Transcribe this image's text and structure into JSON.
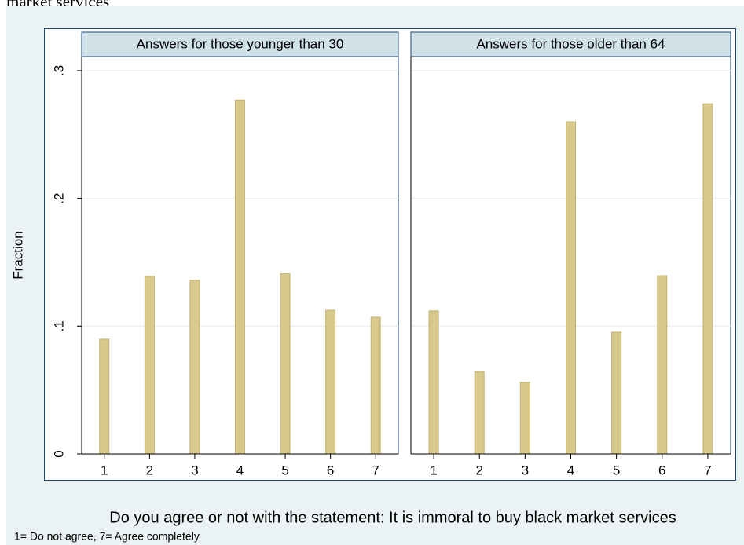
{
  "caption_fragment": "market services",
  "chart_data": {
    "type": "bar",
    "panels": [
      {
        "title": "Answers for those younger than 30",
        "values": [
          0.0898,
          0.139,
          0.136,
          0.277,
          0.141,
          0.1125,
          0.107
        ]
      },
      {
        "title": "Answers for those older than 64",
        "values": [
          0.112,
          0.0645,
          0.056,
          0.26,
          0.0953,
          0.1395,
          0.274
        ]
      }
    ],
    "x": [
      1,
      2,
      3,
      4,
      5,
      6,
      7
    ],
    "xlim": [
      0.5,
      7.5
    ],
    "xticks": [
      1,
      2,
      3,
      4,
      5,
      6,
      7
    ],
    "ylim": [
      0,
      0.311
    ],
    "yticks": [
      0,
      {
        "value": 0.1,
        "label": ".1"
      },
      {
        "value": 0.2,
        "label": ".2"
      },
      {
        "value": 0.3,
        "label": ".3"
      }
    ],
    "ylabel": "Fraction",
    "xlabel": "Do you agree or not with the statement: It is immoral to buy black market services",
    "note": "1= Do not agree, 7= Agree completely",
    "color": "#d8c98c",
    "grid": true
  }
}
